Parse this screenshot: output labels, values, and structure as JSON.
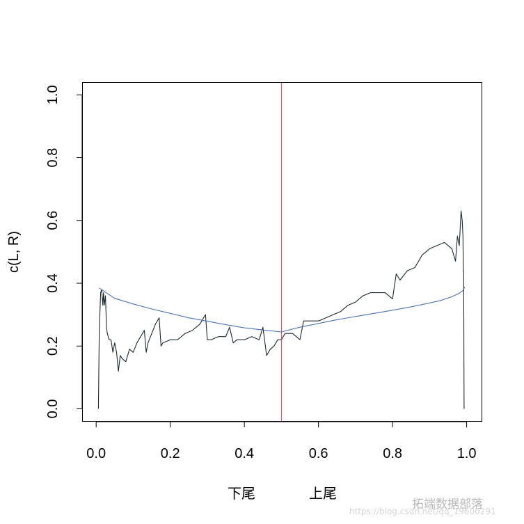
{
  "chart_data": {
    "type": "line",
    "ylabel": "c(L, R)",
    "xlim": [
      0.0,
      1.0
    ],
    "ylim": [
      0.0,
      1.0
    ],
    "x_ticks": [
      "0.0",
      "0.2",
      "0.4",
      "0.6",
      "0.8",
      "1.0"
    ],
    "y_ticks": [
      "0.0",
      "0.2",
      "0.4",
      "0.6",
      "0.8",
      "1.0"
    ],
    "tail_labels": {
      "lower": "下尾",
      "upper": "上尾"
    },
    "grid": false,
    "vline": {
      "x": 0.5,
      "color": "#e0415a"
    },
    "series": [
      {
        "color": "#1a2a30",
        "x": [
          0.006,
          0.008,
          0.01,
          0.012,
          0.015,
          0.018,
          0.02,
          0.022,
          0.025,
          0.028,
          0.03,
          0.035,
          0.04,
          0.045,
          0.05,
          0.055,
          0.06,
          0.065,
          0.07,
          0.08,
          0.09,
          0.1,
          0.11,
          0.12,
          0.13,
          0.135,
          0.14,
          0.15,
          0.16,
          0.17,
          0.175,
          0.18,
          0.2,
          0.22,
          0.24,
          0.26,
          0.28,
          0.295,
          0.3,
          0.31,
          0.33,
          0.35,
          0.36,
          0.37,
          0.38,
          0.4,
          0.42,
          0.44,
          0.45,
          0.46,
          0.47,
          0.48,
          0.49,
          0.5,
          0.51,
          0.53,
          0.55,
          0.56,
          0.58,
          0.6,
          0.62,
          0.64,
          0.66,
          0.68,
          0.7,
          0.72,
          0.74,
          0.76,
          0.78,
          0.8,
          0.81,
          0.82,
          0.84,
          0.86,
          0.88,
          0.9,
          0.92,
          0.94,
          0.96,
          0.97,
          0.975,
          0.98,
          0.985,
          0.988,
          0.99,
          0.991,
          0.992,
          0.993
        ],
        "y": [
          0.0,
          0.22,
          0.3,
          0.37,
          0.38,
          0.33,
          0.37,
          0.33,
          0.36,
          0.26,
          0.24,
          0.22,
          0.22,
          0.18,
          0.21,
          0.18,
          0.12,
          0.17,
          0.16,
          0.15,
          0.19,
          0.18,
          0.21,
          0.23,
          0.25,
          0.18,
          0.21,
          0.24,
          0.27,
          0.29,
          0.2,
          0.21,
          0.22,
          0.22,
          0.24,
          0.25,
          0.27,
          0.3,
          0.22,
          0.22,
          0.23,
          0.23,
          0.26,
          0.21,
          0.22,
          0.22,
          0.23,
          0.22,
          0.26,
          0.17,
          0.19,
          0.2,
          0.22,
          0.22,
          0.24,
          0.24,
          0.22,
          0.28,
          0.28,
          0.28,
          0.29,
          0.3,
          0.31,
          0.33,
          0.34,
          0.36,
          0.37,
          0.37,
          0.37,
          0.35,
          0.43,
          0.41,
          0.44,
          0.45,
          0.49,
          0.51,
          0.52,
          0.53,
          0.51,
          0.47,
          0.55,
          0.52,
          0.63,
          0.6,
          0.55,
          0.44,
          0.44,
          0.0
        ]
      },
      {
        "color": "#4a72b8",
        "x": [
          0.008,
          0.05,
          0.1,
          0.15,
          0.2,
          0.25,
          0.3,
          0.35,
          0.4,
          0.45,
          0.5,
          0.55,
          0.6,
          0.65,
          0.7,
          0.75,
          0.8,
          0.85,
          0.9,
          0.93,
          0.96,
          0.98,
          0.99,
          0.995
        ],
        "y": [
          0.385,
          0.352,
          0.334,
          0.318,
          0.304,
          0.29,
          0.279,
          0.268,
          0.258,
          0.251,
          0.245,
          0.26,
          0.272,
          0.284,
          0.294,
          0.304,
          0.314,
          0.325,
          0.337,
          0.345,
          0.357,
          0.368,
          0.377,
          0.388
        ]
      }
    ]
  },
  "watermark": {
    "logo_text": "拓端数据部落",
    "url": "https://blog.csdn.net/qq_19600291"
  }
}
